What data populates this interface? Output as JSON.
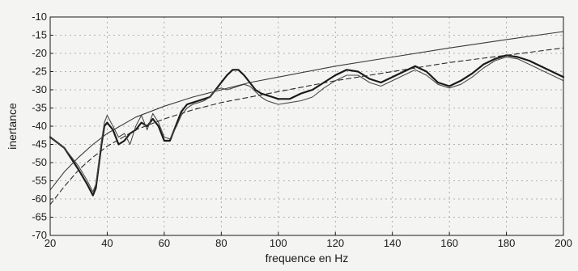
{
  "chart_data": {
    "type": "line",
    "title": "",
    "xlabel": "frequence en Hz",
    "ylabel": "inertance",
    "xlim": [
      20,
      200
    ],
    "ylim": [
      -70,
      -10
    ],
    "grid": true,
    "x_ticks": [
      20,
      40,
      60,
      80,
      100,
      120,
      140,
      160,
      180,
      200
    ],
    "y_ticks": [
      -10,
      -15,
      -20,
      -25,
      -30,
      -35,
      -40,
      -45,
      -50,
      -55,
      -60,
      -65,
      -70
    ],
    "x_tick_labels": [
      "20",
      "40",
      "60",
      "80",
      "100",
      "120",
      "140",
      "160",
      "180",
      "200"
    ],
    "y_tick_labels": [
      "-10",
      "-15",
      "-20",
      "-25",
      "-30",
      "-35",
      "-40",
      "-45",
      "-50",
      "-55",
      "-60",
      "-65",
      "-70"
    ],
    "series": [
      {
        "style": "thick-solid",
        "color": "#1a1a1a",
        "x": [
          20,
          25,
          30,
          33,
          35,
          36,
          37,
          38,
          39,
          40,
          42,
          44,
          46,
          48,
          50,
          52,
          54,
          56,
          58,
          60,
          62,
          64,
          66,
          68,
          70,
          72,
          74,
          76,
          78,
          80,
          82,
          84,
          86,
          88,
          90,
          92,
          94,
          96,
          98,
          100,
          104,
          108,
          112,
          116,
          120,
          124,
          128,
          132,
          136,
          140,
          144,
          148,
          152,
          156,
          160,
          164,
          168,
          172,
          176,
          180,
          184,
          188,
          192,
          196,
          200
        ],
        "y": [
          -43,
          -46,
          -52,
          -56,
          -59,
          -57,
          -51,
          -45,
          -40,
          -39,
          -41,
          -45,
          -44,
          -42,
          -41,
          -39,
          -40,
          -38,
          -40,
          -44,
          -44,
          -40,
          -36,
          -34,
          -33.5,
          -33,
          -32.5,
          -32,
          -30,
          -28,
          -26,
          -24.5,
          -24.5,
          -26,
          -28,
          -30,
          -31,
          -31.5,
          -32,
          -32.5,
          -32.5,
          -31,
          -30,
          -28,
          -26,
          -24.5,
          -25,
          -27,
          -28,
          -26.5,
          -25,
          -23.5,
          -25,
          -28,
          -29,
          -27.5,
          -25.5,
          -23,
          -21.5,
          -20.5,
          -21,
          -22,
          -23.5,
          -25,
          -26.5
        ]
      },
      {
        "style": "thin-solid",
        "color": "#4a4a4a",
        "x": [
          20,
          25,
          30,
          33,
          35,
          36,
          37,
          38,
          39,
          40,
          42,
          44,
          46,
          48,
          50,
          52,
          54,
          56,
          58,
          60,
          62,
          64,
          66,
          68,
          70,
          72,
          74,
          76,
          78,
          80,
          82,
          84,
          86,
          88,
          90,
          92,
          94,
          96,
          98,
          100,
          104,
          108,
          112,
          116,
          120,
          124,
          128,
          132,
          136,
          140,
          144,
          148,
          152,
          156,
          160,
          164,
          168,
          172,
          176,
          180,
          184,
          188,
          192,
          196,
          200
        ],
        "y": [
          -43,
          -46,
          -51,
          -55,
          -58,
          -56,
          -50,
          -44,
          -39,
          -37,
          -40,
          -43,
          -42,
          -45,
          -40,
          -37,
          -41,
          -36.5,
          -39,
          -43,
          -43.5,
          -40.5,
          -37,
          -35,
          -34,
          -33.5,
          -33,
          -32,
          -30,
          -29.5,
          -30,
          -29.5,
          -29,
          -28.5,
          -29,
          -30.5,
          -32,
          -33,
          -33.5,
          -34,
          -33.5,
          -33,
          -32,
          -29.5,
          -27.5,
          -26,
          -26,
          -28,
          -29,
          -27.5,
          -26,
          -24.5,
          -26,
          -28.5,
          -29.5,
          -28.5,
          -26.5,
          -24,
          -22,
          -21,
          -21.5,
          -23,
          -24.5,
          -26,
          -27.5
        ]
      },
      {
        "style": "thin-solid",
        "color": "#3a3a3a",
        "x": [
          20,
          25,
          30,
          35,
          40,
          50,
          60,
          70,
          80,
          90,
          100,
          120,
          140,
          160,
          180,
          200
        ],
        "y": [
          -57.5,
          -52.5,
          -48.5,
          -45,
          -42,
          -37.5,
          -34.5,
          -32,
          -30,
          -28,
          -26.5,
          -23.5,
          -21,
          -18.5,
          -16.2,
          -14
        ]
      },
      {
        "style": "dashed",
        "color": "#2a2a2a",
        "x": [
          20,
          25,
          30,
          35,
          40,
          50,
          60,
          70,
          80,
          90,
          100,
          120,
          140,
          160,
          180,
          200
        ],
        "y": [
          -61.5,
          -56.5,
          -52,
          -48.5,
          -45.5,
          -41,
          -38,
          -35.5,
          -33.5,
          -32,
          -30.5,
          -27.5,
          -25,
          -22.5,
          -20.5,
          -18.5
        ]
      }
    ]
  }
}
